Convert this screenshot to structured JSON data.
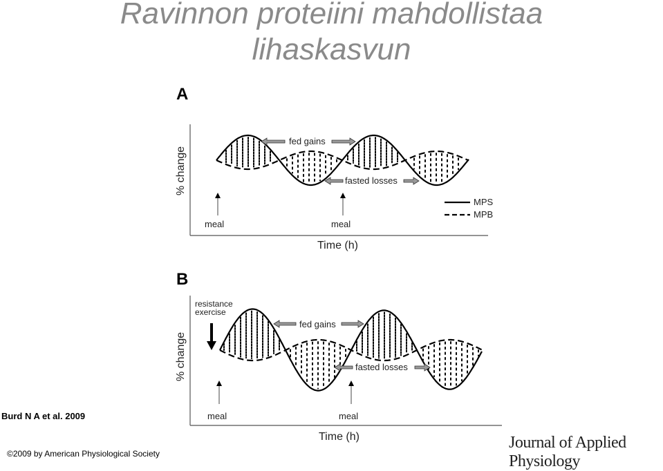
{
  "title": {
    "line1": "Ravinnon proteiini mahdollistaa",
    "line2": "lihaskasvun"
  },
  "panel_a": {
    "label": "A",
    "y_axis_label": "% change",
    "x_axis_label": "Time (h)",
    "meal_labels": [
      "meal",
      "meal"
    ],
    "fed_gains": "fed gains",
    "fasted_losses": "fasted losses",
    "legend": [
      {
        "name": "MPS",
        "style": "solid"
      },
      {
        "name": "MPB",
        "style": "dashed"
      }
    ]
  },
  "panel_b": {
    "label": "B",
    "y_axis_label": "% change",
    "x_axis_label": "Time (h)",
    "meal_labels": [
      "meal",
      "meal"
    ],
    "exercise_label_line1": "resistance",
    "exercise_label_line2": "exercise",
    "fed_gains": "fed gains",
    "fasted_losses": "fasted losses"
  },
  "citation": "Burd N A et al. 2009",
  "copyright": "©2009 by American Physiological Society",
  "journal": "Journal of Applied Physiology",
  "colors": {
    "title": "#8a8a8a",
    "line": "#000000",
    "axis": "#555555",
    "arrow_fill": "#9a9a9a"
  }
}
